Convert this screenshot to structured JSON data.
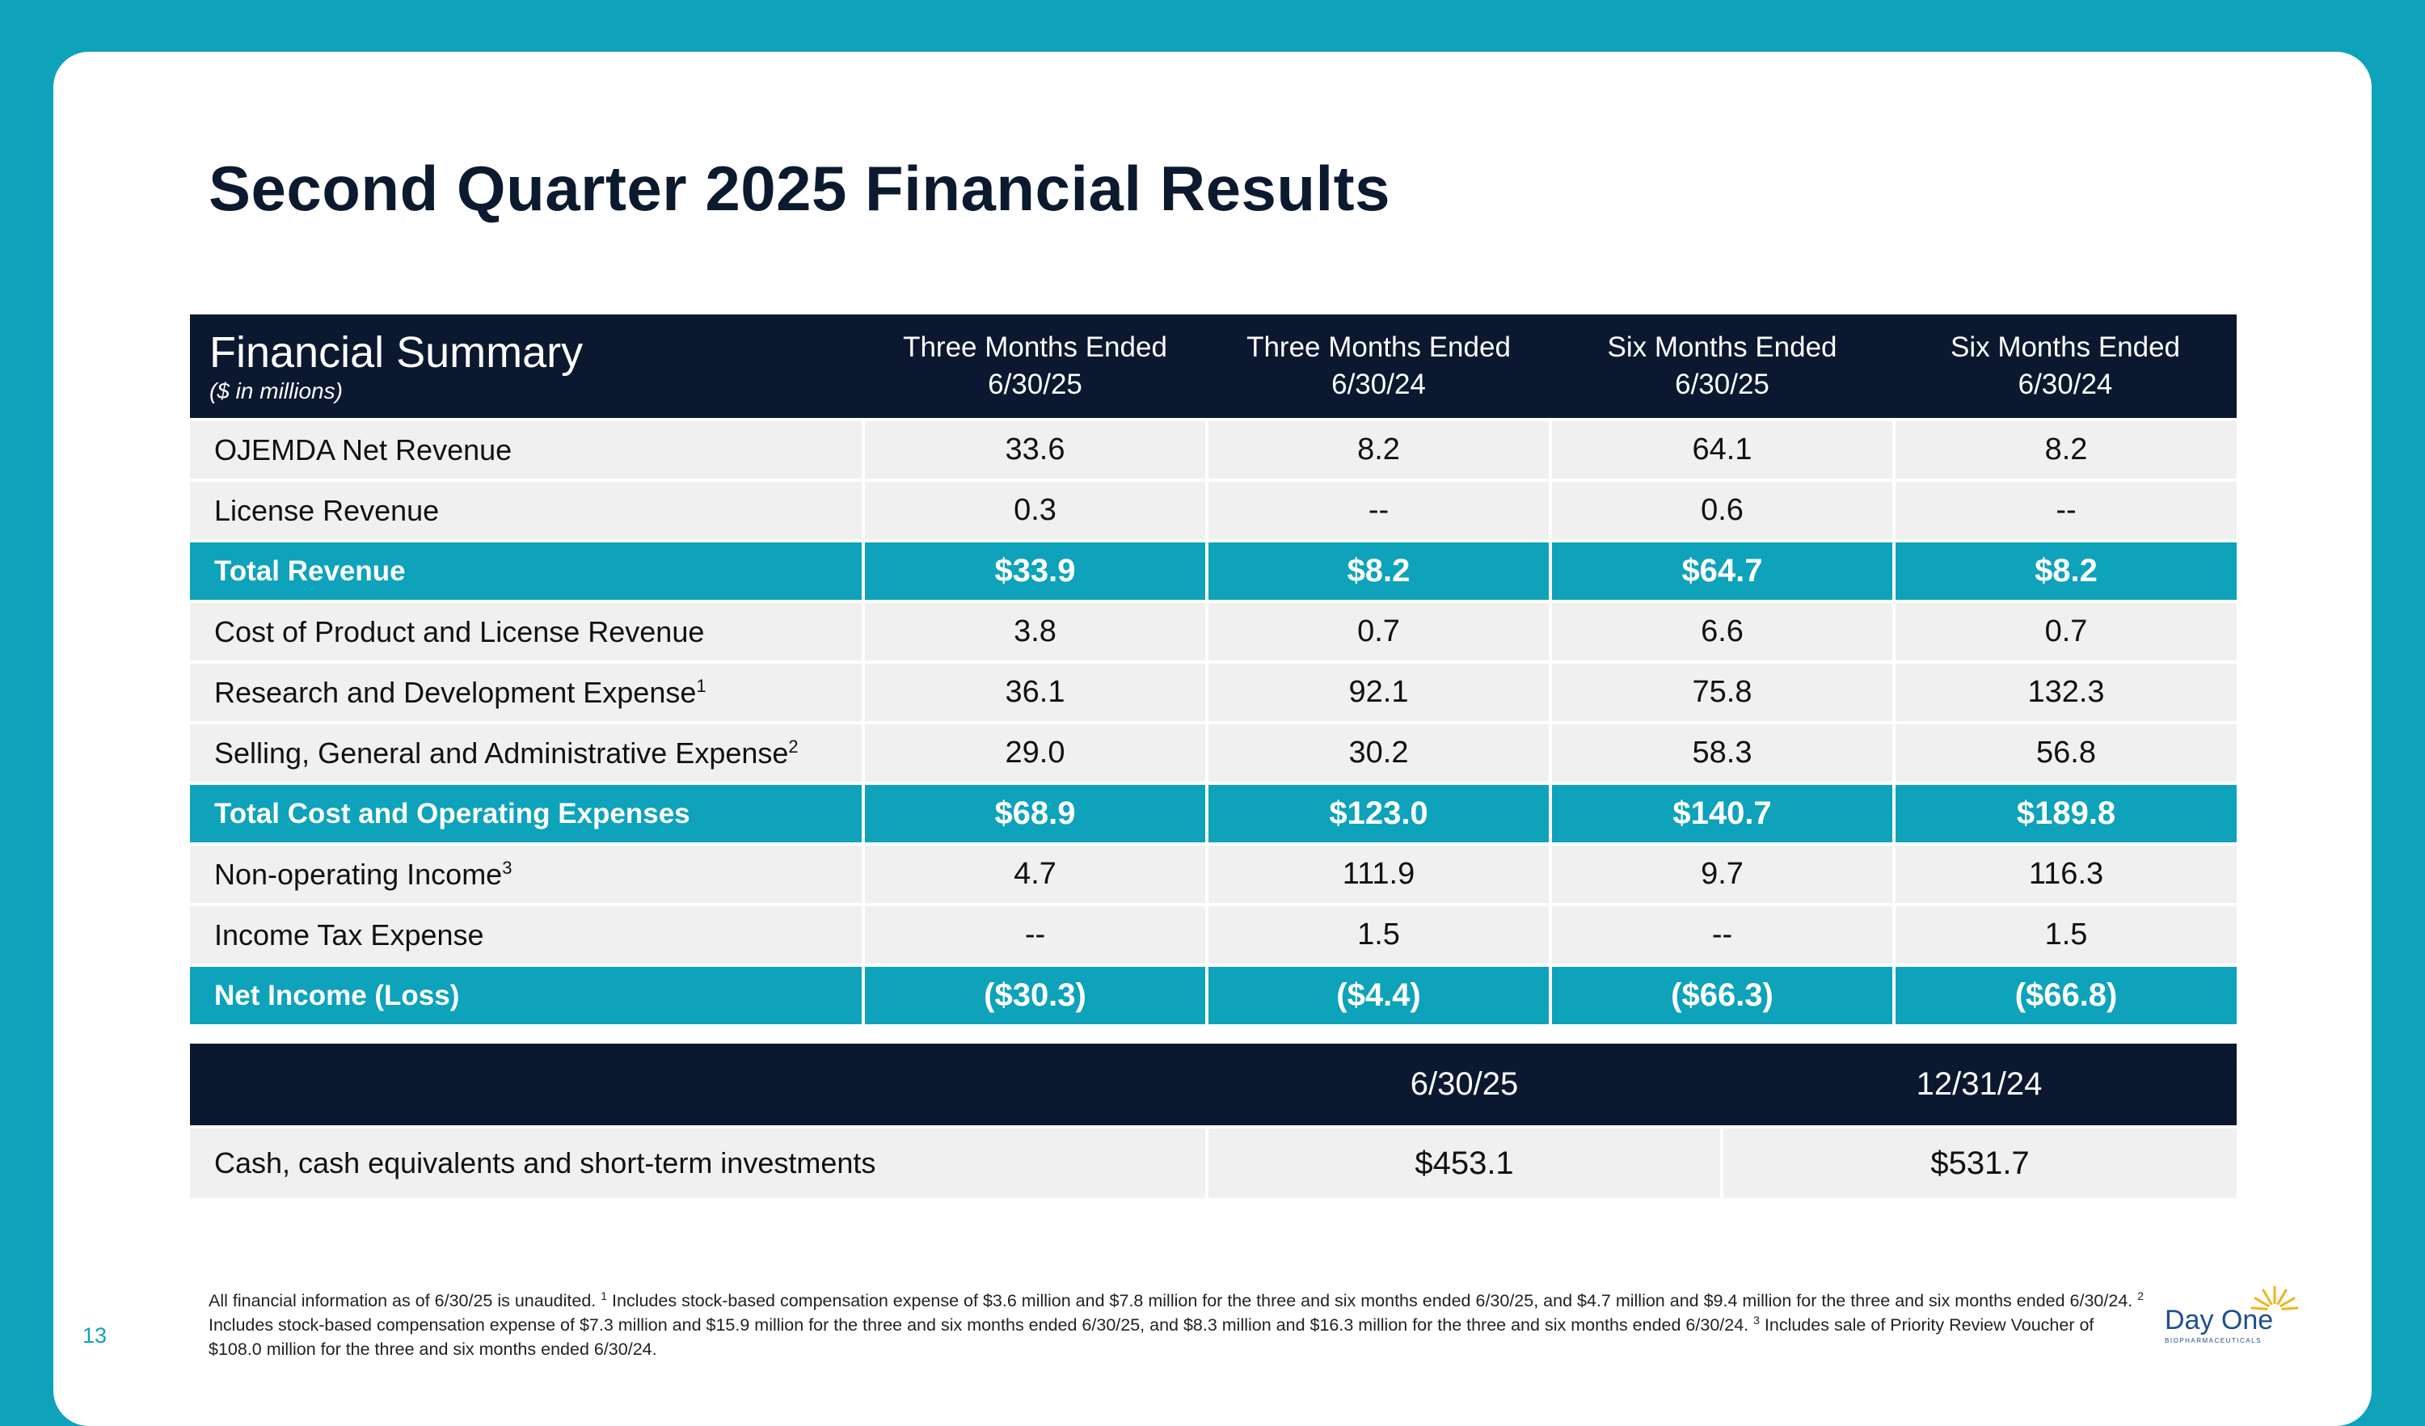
{
  "title": "Second Quarter 2025 Financial Results",
  "summary": {
    "heading": "Financial Summary",
    "units": "($ in millions)",
    "columns": [
      {
        "line1": "Three Months Ended",
        "line2": "6/30/25"
      },
      {
        "line1": "Three Months Ended",
        "line2": "6/30/24"
      },
      {
        "line1": "Six Months Ended",
        "line2": "6/30/25"
      },
      {
        "line1": "Six Months Ended",
        "line2": "6/30/24"
      }
    ],
    "rows": [
      {
        "label": "OJEMDA Net Revenue",
        "sup": "",
        "values": [
          "33.6",
          "8.2",
          "64.1",
          "8.2"
        ]
      },
      {
        "label": "License Revenue",
        "sup": "",
        "values": [
          "0.3",
          "--",
          "0.6",
          "--"
        ]
      },
      {
        "label": "Total Revenue",
        "sup": "",
        "values": [
          "$33.9",
          "$8.2",
          "$64.7",
          "$8.2"
        ]
      },
      {
        "label": "Cost of Product and License Revenue",
        "sup": "",
        "values": [
          "3.8",
          "0.7",
          "6.6",
          "0.7"
        ]
      },
      {
        "label": "Research and Development Expense",
        "sup": "1",
        "values": [
          "36.1",
          "92.1",
          "75.8",
          "132.3"
        ]
      },
      {
        "label": "Selling, General and Administrative Expense",
        "sup": "2",
        "values": [
          "29.0",
          "30.2",
          "58.3",
          "56.8"
        ]
      },
      {
        "label": "Total Cost and Operating Expenses",
        "sup": "",
        "values": [
          "$68.9",
          "$123.0",
          "$140.7",
          "$189.8"
        ]
      },
      {
        "label": "Non-operating Income",
        "sup": "3",
        "values": [
          "4.7",
          "111.9",
          "9.7",
          "116.3"
        ]
      },
      {
        "label": "Income Tax Expense",
        "sup": "",
        "values": [
          "--",
          "1.5",
          "--",
          "1.5"
        ]
      },
      {
        "label": "Net Income (Loss)",
        "sup": "",
        "values": [
          "($30.3)",
          "($4.4)",
          "($66.3)",
          "($66.8)"
        ]
      }
    ]
  },
  "cash": {
    "columns": [
      "6/30/25",
      "12/31/24"
    ],
    "label": "Cash, cash equivalents and short-term investments",
    "values": [
      "$453.1",
      "$531.7"
    ]
  },
  "footnote": {
    "part0": "All financial information as of 6/30/25 is unaudited. ",
    "sup1": "1",
    "part1": " Includes stock-based compensation expense of $3.6 million and $7.8 million for the three and six months ended 6/30/25, and $4.7 million and $9.4 million for the three and six months ended 6/30/24. ",
    "sup2": "2",
    "part2": " Includes stock-based compensation expense of $7.3 million and $15.9 million for the three and six months ended 6/30/25, and $8.3 million and $16.3 million for the three and six months ended 6/30/24. ",
    "sup3": "3",
    "part3": " Includes sale of Priority Review Voucher of $108.0 million for the three and six months ended 6/30/24."
  },
  "page_number": "13",
  "logo": {
    "name": "Day One",
    "tagline": "BIOPHARMACEUTICALS"
  },
  "colors": {
    "accent": "#0ea2bb",
    "header": "#0b1830",
    "row": "#f0f0f0"
  }
}
